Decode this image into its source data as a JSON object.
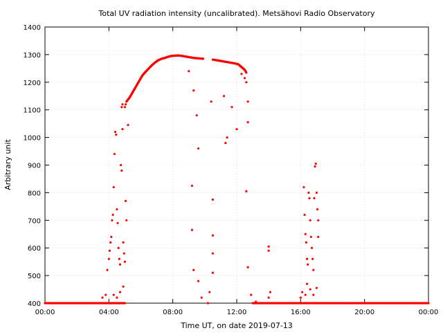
{
  "chart_data": {
    "type": "scatter",
    "title": "Total UV radiation intensity (uncalibrated). Metsähovi Radio Observatory",
    "xlabel": "Time UT, on date 2019-07-13",
    "ylabel": "Arbitrary unit",
    "xlim": [
      0,
      24
    ],
    "ylim": [
      400,
      1400
    ],
    "xticks": [
      0,
      4,
      8,
      12,
      16,
      20,
      24
    ],
    "xtick_labels": [
      "00:00",
      "04:00",
      "08:00",
      "12:00",
      "16:00",
      "20:00",
      "00:00"
    ],
    "yticks": [
      400,
      500,
      600,
      700,
      800,
      900,
      1000,
      1100,
      1200,
      1300,
      1400
    ],
    "ytick_labels": [
      "400",
      "500",
      "600",
      "700",
      "800",
      "900",
      "1000",
      "1100",
      "1200",
      "1300",
      "1400"
    ],
    "grid": true,
    "point_color": "#ff0000",
    "series": [
      {
        "baseline": [
          [
            0,
            400
          ],
          [
            0.5,
            400
          ],
          [
            1,
            400
          ],
          [
            1.5,
            400
          ],
          [
            2,
            400
          ],
          [
            2.5,
            400
          ],
          [
            3,
            400
          ],
          [
            3.5,
            400
          ],
          [
            3.8,
            400
          ],
          [
            4.2,
            400
          ],
          [
            4.6,
            400
          ],
          [
            5,
            400
          ],
          [
            13,
            400
          ],
          [
            13.5,
            400
          ],
          [
            14,
            400
          ],
          [
            14.5,
            400
          ],
          [
            15,
            400
          ],
          [
            15.5,
            400
          ],
          [
            16,
            400
          ],
          [
            16.5,
            400
          ],
          [
            17.2,
            400
          ],
          [
            17.5,
            400
          ],
          [
            18,
            400
          ],
          [
            18.5,
            400
          ],
          [
            19,
            400
          ],
          [
            19.5,
            400
          ],
          [
            20,
            400
          ],
          [
            20.5,
            400
          ],
          [
            21,
            400
          ],
          [
            21.5,
            400
          ],
          [
            22,
            400
          ],
          [
            22.5,
            400
          ],
          [
            23,
            400
          ],
          [
            23.5,
            400
          ],
          [
            24,
            400
          ]
        ],
        "main_curve": [
          [
            5.1,
            1130
          ],
          [
            5.3,
            1145
          ],
          [
            5.5,
            1165
          ],
          [
            5.7,
            1185
          ],
          [
            5.9,
            1205
          ],
          [
            6.1,
            1225
          ],
          [
            6.3,
            1238
          ],
          [
            6.5,
            1250
          ],
          [
            6.7,
            1262
          ],
          [
            6.9,
            1272
          ],
          [
            7.1,
            1280
          ],
          [
            7.3,
            1285
          ],
          [
            7.5,
            1288
          ],
          [
            7.7,
            1292
          ],
          [
            7.9,
            1295
          ],
          [
            8.1,
            1296
          ],
          [
            8.3,
            1297
          ],
          [
            8.5,
            1296
          ],
          [
            8.7,
            1294
          ],
          [
            8.9,
            1292
          ],
          [
            9.1,
            1290
          ],
          [
            9.3,
            1288
          ],
          [
            9.5,
            1287
          ],
          [
            9.7,
            1286
          ],
          [
            9.9,
            1285
          ],
          [
            10.5,
            1282
          ],
          [
            10.7,
            1280
          ],
          [
            10.9,
            1278
          ],
          [
            11.1,
            1276
          ],
          [
            11.3,
            1274
          ],
          [
            11.5,
            1272
          ],
          [
            11.7,
            1270
          ],
          [
            11.9,
            1268
          ],
          [
            12.1,
            1265
          ],
          [
            12.3,
            1255
          ],
          [
            12.5,
            1245
          ],
          [
            12.6,
            1235
          ]
        ],
        "scattered": [
          [
            3.6,
            420
          ],
          [
            3.8,
            430
          ],
          [
            3.9,
            520
          ],
          [
            4.0,
            560
          ],
          [
            4.05,
            590
          ],
          [
            4.1,
            620
          ],
          [
            4.15,
            640
          ],
          [
            4.2,
            700
          ],
          [
            4.25,
            720
          ],
          [
            4.3,
            820
          ],
          [
            4.35,
            940
          ],
          [
            4.4,
            1020
          ],
          [
            4.45,
            1010
          ],
          [
            4.5,
            740
          ],
          [
            4.55,
            690
          ],
          [
            4.6,
            600
          ],
          [
            4.65,
            560
          ],
          [
            4.7,
            540
          ],
          [
            4.75,
            900
          ],
          [
            4.8,
            880
          ],
          [
            4.85,
            1030
          ],
          [
            4.9,
            620
          ],
          [
            4.95,
            580
          ],
          [
            5.0,
            550
          ],
          [
            5.05,
            770
          ],
          [
            5.1,
            700
          ],
          [
            4.8,
            1110
          ],
          [
            4.85,
            1120
          ],
          [
            5.0,
            1110
          ],
          [
            5.05,
            1120
          ],
          [
            5.2,
            1045
          ],
          [
            4.3,
            430
          ],
          [
            4.5,
            420
          ],
          [
            4.7,
            440
          ],
          [
            4.9,
            460
          ],
          [
            9.0,
            1240
          ],
          [
            9.3,
            1170
          ],
          [
            9.5,
            1080
          ],
          [
            9.6,
            960
          ],
          [
            9.2,
            825
          ],
          [
            9.2,
            665
          ],
          [
            9.3,
            520
          ],
          [
            9.6,
            480
          ],
          [
            9.8,
            420
          ],
          [
            10.2,
            400
          ],
          [
            10.4,
            1130
          ],
          [
            10.5,
            775
          ],
          [
            10.5,
            645
          ],
          [
            10.5,
            580
          ],
          [
            10.5,
            510
          ],
          [
            10.3,
            440
          ],
          [
            11.2,
            1150
          ],
          [
            11.4,
            1000
          ],
          [
            11.3,
            980
          ],
          [
            11.7,
            1110
          ],
          [
            12.0,
            1030
          ],
          [
            12.3,
            1230
          ],
          [
            12.5,
            1215
          ],
          [
            12.6,
            1200
          ],
          [
            12.7,
            1130
          ],
          [
            12.7,
            1055
          ],
          [
            12.6,
            805
          ],
          [
            12.7,
            530
          ],
          [
            12.9,
            430
          ],
          [
            13.2,
            405
          ],
          [
            14.0,
            605
          ],
          [
            14.0,
            590
          ],
          [
            14.1,
            440
          ],
          [
            14.0,
            420
          ],
          [
            16.0,
            420
          ],
          [
            16.1,
            440
          ],
          [
            16.2,
            820
          ],
          [
            16.25,
            720
          ],
          [
            16.3,
            650
          ],
          [
            16.35,
            620
          ],
          [
            16.4,
            560
          ],
          [
            16.45,
            540
          ],
          [
            16.5,
            800
          ],
          [
            16.55,
            780
          ],
          [
            16.6,
            700
          ],
          [
            16.65,
            640
          ],
          [
            16.7,
            600
          ],
          [
            16.75,
            560
          ],
          [
            16.8,
            520
          ],
          [
            16.85,
            780
          ],
          [
            16.9,
            895
          ],
          [
            16.95,
            905
          ],
          [
            17.0,
            800
          ],
          [
            17.05,
            740
          ],
          [
            17.1,
            700
          ],
          [
            17.1,
            640
          ],
          [
            16.4,
            470
          ],
          [
            16.6,
            450
          ],
          [
            16.8,
            430
          ],
          [
            17.0,
            455
          ],
          [
            16.3,
            430
          ]
        ]
      }
    ]
  }
}
